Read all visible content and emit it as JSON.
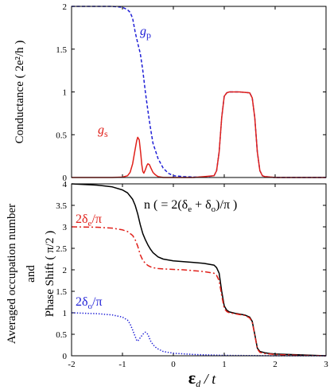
{
  "chart_data": [
    {
      "type": "line",
      "ylabel": "Conductance ( 2e²/h )",
      "xlim": [
        -2,
        3
      ],
      "ylim": [
        0,
        2
      ],
      "xticks": [
        -2,
        -1,
        0,
        1,
        2,
        3
      ],
      "yticks": [
        "0",
        "0.5",
        "1",
        "1.5",
        "2"
      ],
      "grid": false,
      "series": [
        {
          "name": "g_p",
          "label_main": "g",
          "label_sub": "p",
          "color": "#1f1fd6",
          "dash": "dashed",
          "x": [
            -2.0,
            -1.2,
            -1.0,
            -0.9,
            -0.85,
            -0.8,
            -0.75,
            -0.7,
            -0.65,
            -0.6,
            -0.55,
            -0.5,
            -0.45,
            -0.4,
            -0.3,
            -0.2,
            -0.1,
            0.0,
            0.2,
            0.4,
            0.6,
            0.8,
            0.85,
            0.9,
            0.95,
            1.0,
            1.05,
            1.1,
            1.3,
            1.5,
            1.55,
            1.6,
            1.65,
            1.7,
            1.75,
            1.8,
            2.0,
            2.5,
            3.0
          ],
          "y": [
            2.0,
            2.0,
            1.99,
            1.96,
            1.93,
            1.86,
            1.7,
            1.57,
            1.45,
            1.25,
            1.0,
            0.78,
            0.58,
            0.4,
            0.22,
            0.11,
            0.05,
            0.02,
            0.01,
            0.005,
            0.005,
            0.02,
            0.08,
            0.3,
            0.7,
            0.95,
            0.99,
            1.0,
            1.0,
            0.99,
            0.93,
            0.7,
            0.3,
            0.08,
            0.02,
            0.01,
            0.0,
            0.0,
            0.0
          ]
        },
        {
          "name": "g_s",
          "label_main": "g",
          "label_sub": "s",
          "color": "#e0201a",
          "dash": "solid",
          "x": [
            -2.0,
            -1.2,
            -1.0,
            -0.9,
            -0.85,
            -0.8,
            -0.76,
            -0.72,
            -0.7,
            -0.67,
            -0.64,
            -0.62,
            -0.6,
            -0.58,
            -0.55,
            -0.52,
            -0.5,
            -0.47,
            -0.44,
            -0.4,
            -0.35,
            -0.3,
            -0.2,
            0.0,
            0.4,
            0.8,
            0.85,
            0.9,
            0.95,
            1.0,
            1.05,
            1.1,
            1.3,
            1.5,
            1.55,
            1.6,
            1.65,
            1.7,
            1.75,
            1.8,
            2.0,
            2.5,
            3.0
          ],
          "y": [
            0.0,
            0.0,
            0.005,
            0.02,
            0.06,
            0.16,
            0.3,
            0.43,
            0.47,
            0.44,
            0.28,
            0.15,
            0.07,
            0.05,
            0.09,
            0.14,
            0.16,
            0.15,
            0.11,
            0.06,
            0.03,
            0.01,
            0.0,
            0.0,
            0.0,
            0.02,
            0.08,
            0.3,
            0.7,
            0.95,
            0.99,
            1.0,
            1.0,
            0.99,
            0.93,
            0.7,
            0.3,
            0.08,
            0.02,
            0.01,
            0.0,
            0.0,
            0.0
          ]
        }
      ]
    },
    {
      "type": "line",
      "ylabel": "Averaged occupation number and Phase Shift ( π/2 )",
      "ylabel_lines": [
        "Averaged occupation number",
        "and",
        "Phase Shift ( π/2 )"
      ],
      "xlabel_main": "ε",
      "xlabel_sub": "d",
      "xlabel_rest": " / t",
      "xlim": [
        -2,
        3
      ],
      "ylim": [
        0,
        4
      ],
      "xticks": [
        -2,
        -1,
        0,
        1,
        2,
        3
      ],
      "yticks": [
        "0",
        "0.5",
        "1",
        "1.5",
        "2",
        "2.5",
        "3",
        "3.5",
        "4"
      ],
      "grid": false,
      "series": [
        {
          "name": "n ( = 2(δe + δo)/π )",
          "label": "n ( = 2(δ",
          "label_sub1": "e",
          "label_mid": " + δ",
          "label_sub2": "o",
          "label_end": ")/π )",
          "color": "#000000",
          "dash": "solid",
          "x": [
            -2.0,
            -1.5,
            -1.2,
            -1.0,
            -0.9,
            -0.8,
            -0.75,
            -0.7,
            -0.65,
            -0.6,
            -0.55,
            -0.5,
            -0.45,
            -0.4,
            -0.3,
            -0.2,
            0.0,
            0.2,
            0.4,
            0.6,
            0.8,
            0.85,
            0.9,
            0.95,
            1.0,
            1.05,
            1.1,
            1.2,
            1.3,
            1.4,
            1.5,
            1.55,
            1.6,
            1.65,
            1.7,
            1.8,
            1.9,
            2.0,
            2.5,
            3.0
          ],
          "y": [
            4.0,
            3.97,
            3.93,
            3.86,
            3.79,
            3.64,
            3.5,
            3.3,
            3.05,
            2.84,
            2.7,
            2.58,
            2.48,
            2.4,
            2.3,
            2.25,
            2.21,
            2.19,
            2.17,
            2.15,
            2.11,
            2.05,
            1.92,
            1.5,
            1.16,
            1.06,
            1.02,
            0.99,
            0.97,
            0.95,
            0.9,
            0.8,
            0.5,
            0.18,
            0.1,
            0.07,
            0.05,
            0.04,
            0.02,
            0.0
          ]
        },
        {
          "name": "2δe/π",
          "label_main": "2δ",
          "label_sub": "e",
          "label_end": "/π",
          "color": "#e0201a",
          "dash": "dashdot",
          "x": [
            -2.0,
            -1.5,
            -1.2,
            -1.0,
            -0.9,
            -0.8,
            -0.75,
            -0.7,
            -0.65,
            -0.6,
            -0.55,
            -0.5,
            -0.45,
            -0.4,
            -0.3,
            -0.2,
            0.0,
            0.2,
            0.4,
            0.6,
            0.8,
            0.85,
            0.9,
            0.95,
            1.0,
            1.05,
            1.1,
            1.2,
            1.3,
            1.4,
            1.5,
            1.55,
            1.6,
            1.65,
            1.7,
            1.8,
            1.9,
            2.0,
            2.5,
            3.0
          ],
          "y": [
            3.0,
            2.99,
            2.97,
            2.93,
            2.89,
            2.8,
            2.7,
            2.55,
            2.35,
            2.22,
            2.15,
            2.1,
            2.07,
            2.05,
            2.03,
            2.02,
            2.01,
            2.0,
            1.98,
            1.96,
            1.92,
            1.87,
            1.75,
            1.4,
            1.1,
            1.03,
            1.0,
            0.98,
            0.96,
            0.94,
            0.88,
            0.78,
            0.48,
            0.16,
            0.08,
            0.05,
            0.04,
            0.03,
            0.01,
            0.0
          ]
        },
        {
          "name": "2δo/π",
          "label_main": "2δ",
          "label_sub": "o",
          "label_end": "/π",
          "color": "#1f1fd6",
          "dash": "dotted",
          "x": [
            -2.0,
            -1.5,
            -1.2,
            -1.0,
            -0.9,
            -0.85,
            -0.8,
            -0.75,
            -0.72,
            -0.7,
            -0.65,
            -0.6,
            -0.55,
            -0.5,
            -0.45,
            -0.4,
            -0.35,
            -0.3,
            -0.2,
            0.0,
            0.4,
            1.0,
            2.0,
            3.0
          ],
          "y": [
            1.0,
            0.98,
            0.95,
            0.9,
            0.83,
            0.74,
            0.6,
            0.45,
            0.36,
            0.34,
            0.42,
            0.5,
            0.55,
            0.5,
            0.35,
            0.26,
            0.2,
            0.16,
            0.1,
            0.06,
            0.03,
            0.01,
            0.0,
            0.0
          ]
        }
      ]
    }
  ]
}
